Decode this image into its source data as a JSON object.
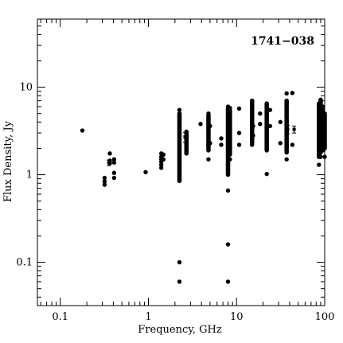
{
  "chart_data": {
    "type": "scatter",
    "source_label": "1741−038",
    "xlabel": "Frequency, GHz",
    "ylabel": "Flux Density, Jy",
    "xscale": "log",
    "yscale": "log",
    "xlim": [
      0.055,
      100
    ],
    "ylim": [
      0.032,
      60
    ],
    "x_ticks": [
      {
        "value": 0.1,
        "label": "0.1"
      },
      {
        "value": 1,
        "label": "1"
      },
      {
        "value": 10,
        "label": "10"
      },
      {
        "value": 100,
        "label": "100"
      }
    ],
    "y_ticks": [
      {
        "value": 0.1,
        "label": "0.1"
      },
      {
        "value": 1,
        "label": "1"
      },
      {
        "value": 10,
        "label": "10"
      }
    ],
    "points": [
      [
        0.178,
        3.2
      ],
      [
        0.318,
        0.92
      ],
      [
        0.318,
        0.84
      ],
      [
        0.318,
        0.77
      ],
      [
        0.365,
        1.75
      ],
      [
        0.365,
        1.45
      ],
      [
        0.365,
        1.35
      ],
      [
        0.408,
        1.5
      ],
      [
        0.408,
        1.38
      ],
      [
        0.408,
        1.05
      ],
      [
        0.408,
        0.92
      ],
      [
        0.93,
        1.07
      ],
      [
        1.4,
        1.75
      ],
      [
        1.4,
        1.6
      ],
      [
        1.4,
        1.5
      ],
      [
        1.4,
        1.4
      ],
      [
        1.4,
        1.3
      ],
      [
        1.4,
        1.2
      ],
      [
        1.48,
        1.7
      ],
      [
        1.48,
        1.5
      ],
      [
        2.25,
        0.1
      ],
      [
        2.25,
        0.06
      ],
      [
        2.25,
        0.95
      ],
      [
        2.25,
        1.2
      ],
      [
        2.25,
        1.6
      ],
      [
        2.25,
        2.2
      ],
      [
        2.25,
        3.0
      ],
      [
        2.25,
        4.2
      ],
      [
        2.25,
        5.5
      ],
      [
        2.7,
        3.0
      ],
      [
        2.7,
        2.5
      ],
      [
        2.7,
        2.0
      ],
      [
        2.7,
        1.8
      ],
      [
        3.9,
        3.8
      ],
      [
        4.8,
        1.5
      ],
      [
        4.8,
        2.2
      ],
      [
        4.8,
        3.0
      ],
      [
        4.8,
        4.0
      ],
      [
        4.8,
        5.0
      ],
      [
        5.0,
        3.6
      ],
      [
        5.0,
        2.3
      ],
      [
        6.7,
        2.6
      ],
      [
        6.7,
        2.2
      ],
      [
        8.0,
        0.66
      ],
      [
        8.0,
        0.16
      ],
      [
        8.0,
        0.06
      ],
      [
        8.0,
        1.3
      ],
      [
        8.0,
        1.7
      ],
      [
        8.0,
        2.3
      ],
      [
        8.0,
        3.0
      ],
      [
        8.0,
        4.0
      ],
      [
        8.0,
        5.0
      ],
      [
        8.0,
        6.0
      ],
      [
        8.4,
        5.8
      ],
      [
        8.4,
        3.2
      ],
      [
        8.4,
        1.5
      ],
      [
        10.7,
        3.0
      ],
      [
        10.7,
        2.2
      ],
      [
        10.7,
        5.7
      ],
      [
        15.0,
        2.2
      ],
      [
        15.0,
        3.0
      ],
      [
        15.0,
        4.0
      ],
      [
        15.0,
        5.5
      ],
      [
        15.0,
        7.0
      ],
      [
        15.4,
        2.8
      ],
      [
        15.4,
        3.6
      ],
      [
        18.5,
        3.8
      ],
      [
        18.5,
        5.0
      ],
      [
        22.0,
        1.02
      ],
      [
        22.0,
        2.0
      ],
      [
        22.0,
        2.8
      ],
      [
        22.0,
        3.8
      ],
      [
        22.0,
        5.0
      ],
      [
        22.0,
        6.5
      ],
      [
        24.0,
        3.6
      ],
      [
        24.0,
        5.5
      ],
      [
        31.4,
        2.3
      ],
      [
        31.4,
        4.0
      ],
      [
        37.0,
        1.5
      ],
      [
        37.0,
        2.2
      ],
      [
        37.0,
        3.0
      ],
      [
        37.0,
        4.2
      ],
      [
        37.0,
        5.5
      ],
      [
        37.0,
        7.0
      ],
      [
        37.0,
        8.5
      ],
      [
        43.0,
        8.6
      ],
      [
        43.0,
        2.2
      ],
      [
        86.0,
        1.3
      ],
      [
        86.0,
        2.0
      ],
      [
        86.0,
        2.6
      ],
      [
        86.0,
        3.2
      ],
      [
        86.0,
        4.0
      ],
      [
        86.0,
        5.0
      ],
      [
        86.0,
        6.5
      ],
      [
        90.0,
        1.6
      ],
      [
        90.0,
        2.3
      ],
      [
        90.0,
        3.0
      ],
      [
        90.0,
        3.8
      ],
      [
        90.0,
        4.8
      ],
      [
        90.0,
        6.0
      ],
      [
        90.0,
        7.2
      ],
      [
        95.0,
        1.9
      ],
      [
        95.0,
        2.8
      ],
      [
        95.0,
        3.8
      ],
      [
        95.0,
        5.0
      ],
      [
        95.0,
        6.0
      ],
      [
        100.0,
        1.6
      ],
      [
        100.0,
        2.4
      ],
      [
        100.0,
        3.4
      ],
      [
        100.0,
        4.6
      ]
    ],
    "vertical_ranges": [
      [
        2.25,
        0.85,
        5.0
      ],
      [
        2.7,
        1.75,
        3.1
      ],
      [
        4.8,
        1.9,
        4.8
      ],
      [
        8.0,
        1.0,
        5.8
      ],
      [
        8.4,
        1.7,
        5.5
      ],
      [
        15.0,
        2.3,
        7.0
      ],
      [
        22.0,
        1.9,
        6.5
      ],
      [
        37.0,
        1.8,
        7.0
      ],
      [
        86.0,
        1.6,
        6.5
      ],
      [
        90.0,
        1.8,
        7.0
      ],
      [
        95.0,
        2.1,
        5.5
      ],
      [
        100.0,
        2.0,
        5.0
      ]
    ],
    "error_points": [
      {
        "x": 0.355,
        "y": 1.37,
        "yerr": 0.1
      },
      {
        "x": 2.6,
        "y": 2.7,
        "yerr": 0.35
      },
      {
        "x": 38.0,
        "y": 3.3,
        "yerr": 0.35
      },
      {
        "x": 45.0,
        "y": 3.3,
        "yerr": 0.3
      }
    ]
  }
}
